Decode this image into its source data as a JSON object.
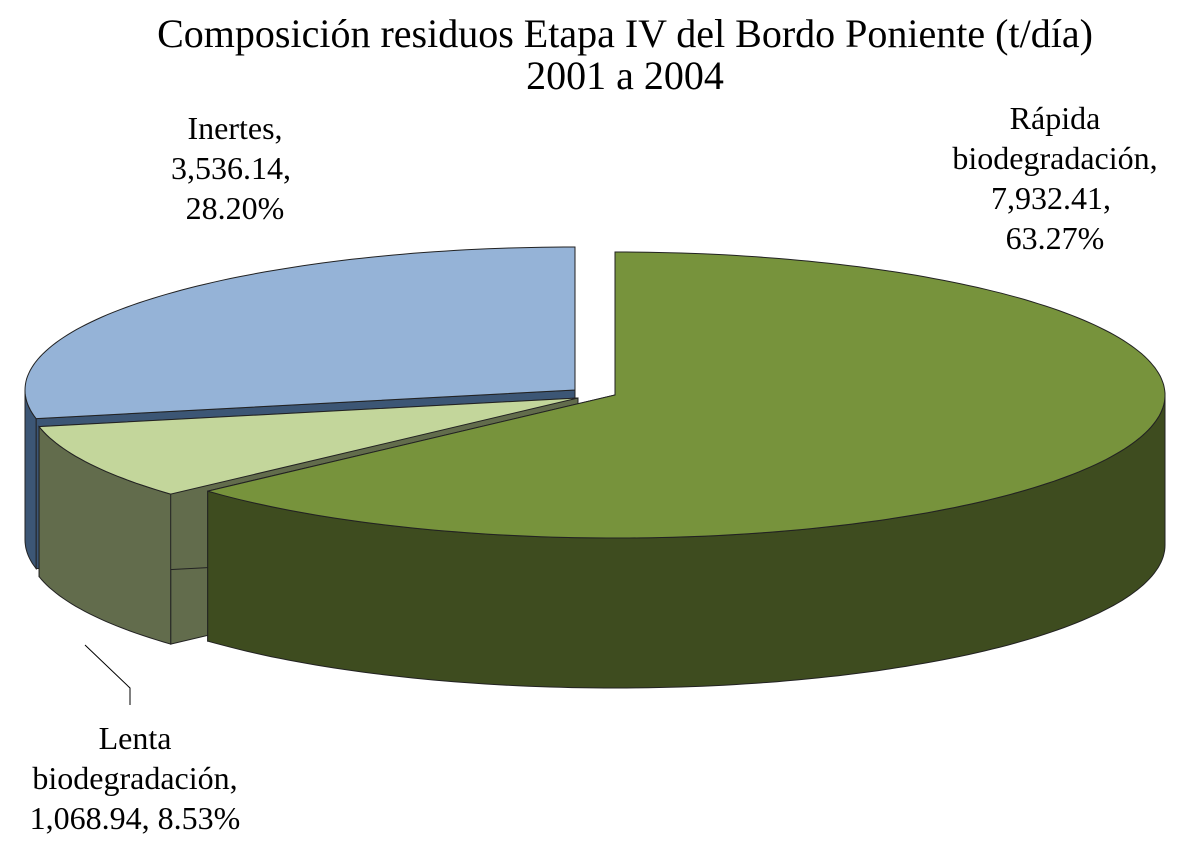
{
  "chart_data": {
    "type": "pie3d",
    "title": [
      "Composición residuos Etapa IV del Bordo Poniente (t/día)",
      "2001 a 2004"
    ],
    "categories": [
      "Rápida biodegradación",
      "Lenta biodegradación",
      "Inertes"
    ],
    "values": [
      7932.41,
      1068.94,
      3536.14
    ],
    "value_labels": [
      "7,932.41",
      "1,068.94",
      "3,536.14"
    ],
    "percents": [
      63.27,
      8.53,
      28.2
    ],
    "percent_labels": [
      "63.27%",
      "8.53%",
      "28.20%"
    ],
    "label_separator": ",",
    "colors": [
      "#77933c",
      "#c3d69b",
      "#95b3d7"
    ],
    "side_colors": [
      "#3e4c1f",
      "#626c4c",
      "#3c5675"
    ]
  }
}
